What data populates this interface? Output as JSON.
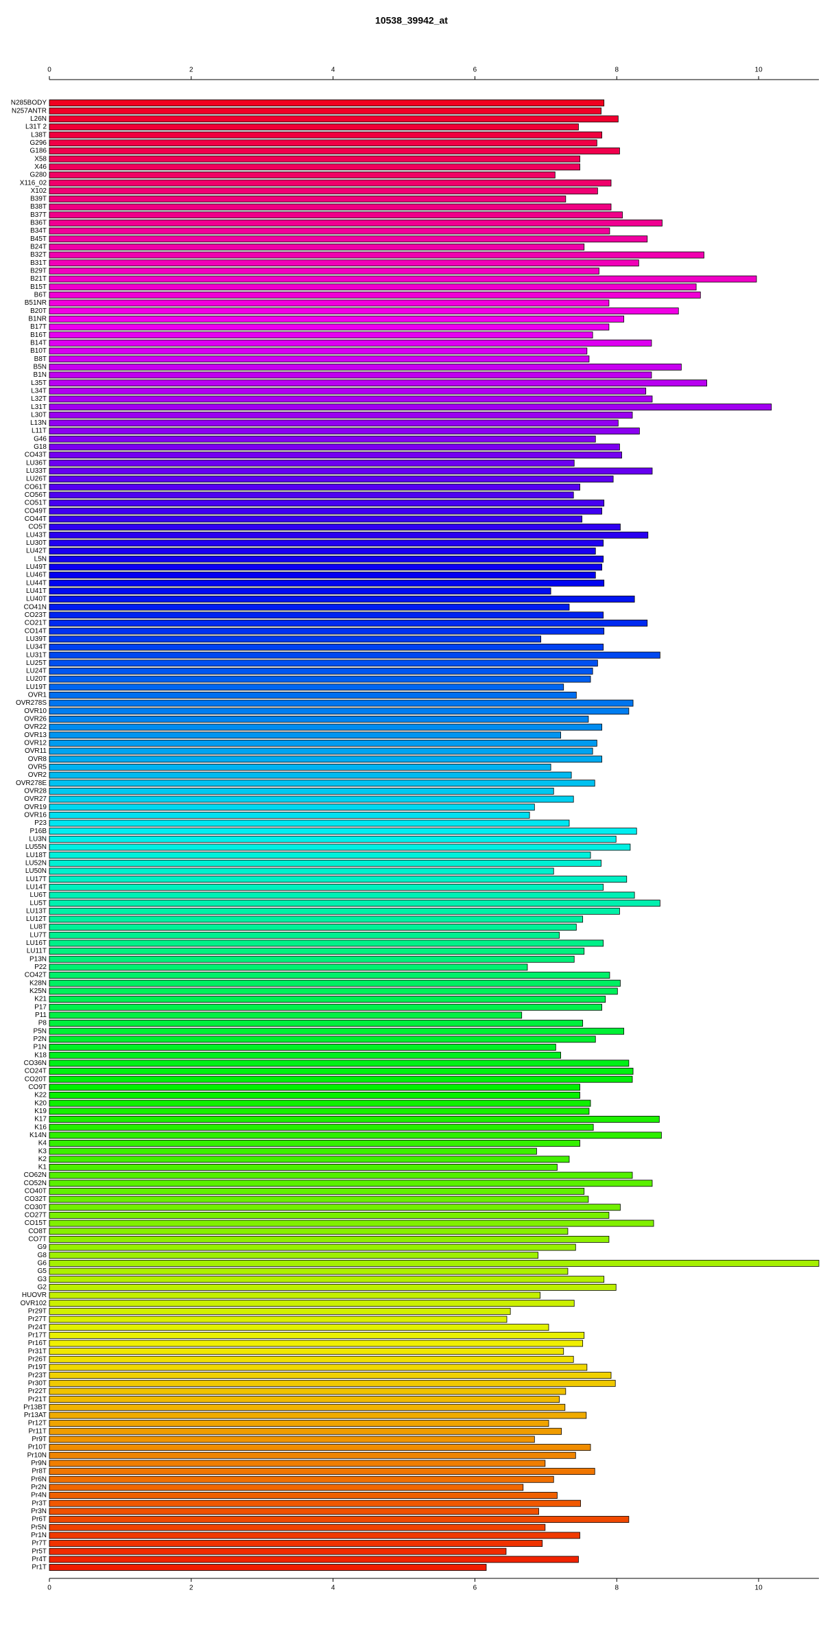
{
  "chart_data": {
    "type": "barh",
    "title": "10538_39942_at",
    "categories": [
      "N285BODY",
      "N257ANTR",
      "L26N",
      "L31T 2",
      "L38T",
      "G296",
      "G186",
      "X58",
      "X46",
      "G280",
      "X116_02",
      "X102",
      "B39T",
      "B38T",
      "B37T",
      "B36T",
      "B34T",
      "B45T",
      "B24T",
      "B32T",
      "B31T",
      "B29T",
      "B21T",
      "B15T",
      "B6T",
      "B51NR",
      "B20T",
      "B1NR",
      "B17T",
      "B16T",
      "B14T",
      "B10T",
      "B8T",
      "B5N",
      "B1N",
      "L35T",
      "L34T",
      "L32T",
      "L31T",
      "L30T",
      "L13N",
      "L11T",
      "G46",
      "G18",
      "CO43T",
      "LU36T",
      "LU33T",
      "LU26T",
      "CO61T",
      "CO56T",
      "CO51T",
      "CO49T",
      "CO44T",
      "CO5T",
      "LU43T",
      "LU30T",
      "LU42T",
      "L5N",
      "LU49T",
      "LU46T",
      "LU44T",
      "LU41T",
      "LU40T",
      "CO41N",
      "CO23T",
      "CO21T",
      "CO14T",
      "LU39T",
      "LU34T",
      "LU31T",
      "LU25T",
      "LU24T",
      "LU20T",
      "LU19T",
      "OVR1",
      "OVR278S",
      "OVR10",
      "OVR26",
      "OVR22",
      "OVR13",
      "OVR12",
      "OVR11",
      "OVR8",
      "OVR5",
      "OVR2",
      "OVR278E",
      "OVR28",
      "OVR27",
      "OVR19",
      "OVR16",
      "P23",
      "P16B",
      "LU3N",
      "LU55N",
      "LU18T",
      "LU52N",
      "LU50N",
      "LU17T",
      "LU14T",
      "LU6T",
      "LU5T",
      "LU13T",
      "LU12T",
      "LU8T",
      "LU7T",
      "LU16T",
      "LU11T",
      "P13N",
      "P22",
      "CO42T",
      "K28N",
      "K25N",
      "K21",
      "P17",
      "P11",
      "P8",
      "P5N",
      "P2N",
      "P1N",
      "K18",
      "CO36N",
      "CO24T",
      "CO20T",
      "CO9T",
      "K22",
      "K20",
      "K19",
      "K17",
      "K16",
      "K14N",
      "K4",
      "K3",
      "K2",
      "K1",
      "CO62N",
      "CO52N",
      "CO40T",
      "CO32T",
      "CO30T",
      "CO27T",
      "CO15T",
      "CO8T",
      "CO7T",
      "G9",
      "G8",
      "G6",
      "G5",
      "G3",
      "G2",
      "HUOVR",
      "OVR102",
      "Pr29T",
      "Pr27T",
      "Pr24T",
      "Pr17T",
      "Pr16T",
      "Pr31T",
      "Pr26T",
      "Pr19T",
      "Pr23T",
      "Pr30T",
      "Pr22T",
      "Pr21T",
      "Pr13BT",
      "Pr13AT",
      "Pr12T",
      "Pr11T",
      "Pr9T",
      "Pr10T",
      "Pr10N",
      "Pr9N",
      "Pr8T",
      "Pr6N",
      "Pr2N",
      "Pr4N",
      "Pr3T",
      "Pr3N",
      "Pr6T",
      "Pr5N",
      "Pr1N",
      "Pr7T",
      "Pr5T",
      "Pr4T",
      "Pr1T"
    ],
    "values": [
      7.82,
      7.78,
      8.02,
      7.46,
      7.79,
      7.72,
      8.04,
      7.48,
      7.48,
      7.13,
      7.92,
      7.73,
      7.28,
      7.92,
      8.08,
      8.64,
      7.9,
      8.43,
      7.54,
      9.23,
      8.31,
      7.75,
      9.97,
      9.12,
      9.18,
      7.89,
      8.87,
      8.1,
      7.89,
      7.66,
      8.49,
      7.58,
      7.61,
      8.91,
      8.49,
      9.27,
      8.41,
      8.5,
      10.18,
      8.22,
      8.02,
      8.32,
      7.7,
      8.04,
      8.07,
      7.4,
      8.5,
      7.95,
      7.48,
      7.39,
      7.82,
      7.79,
      7.51,
      8.05,
      8.44,
      7.81,
      7.7,
      7.81,
      7.79,
      7.7,
      7.82,
      7.07,
      8.25,
      7.33,
      7.81,
      8.43,
      7.82,
      6.93,
      7.81,
      8.61,
      7.73,
      7.66,
      7.63,
      7.25,
      7.43,
      8.23,
      8.17,
      7.6,
      7.79,
      7.21,
      7.72,
      7.66,
      7.79,
      7.07,
      7.36,
      7.69,
      7.11,
      7.39,
      6.84,
      6.77,
      7.33,
      8.28,
      7.99,
      8.19,
      7.63,
      7.78,
      7.11,
      8.14,
      7.81,
      8.25,
      8.61,
      8.04,
      7.52,
      7.43,
      7.19,
      7.81,
      7.54,
      7.4,
      6.74,
      7.9,
      8.05,
      8.01,
      7.84,
      7.79,
      6.66,
      7.52,
      8.1,
      7.7,
      7.14,
      7.21,
      8.17,
      8.23,
      8.22,
      7.48,
      7.48,
      7.63,
      7.61,
      8.6,
      7.67,
      8.63,
      7.48,
      6.87,
      7.33,
      7.16,
      8.22,
      8.5,
      7.54,
      7.6,
      8.05,
      7.89,
      8.52,
      7.31,
      7.89,
      7.42,
      6.89,
      10.85,
      7.31,
      7.82,
      7.99,
      6.92,
      7.4,
      6.5,
      6.45,
      7.04,
      7.54,
      7.52,
      7.25,
      7.39,
      7.58,
      7.92,
      7.98,
      7.28,
      7.19,
      7.27,
      7.57,
      7.04,
      7.22,
      6.84,
      7.63,
      7.42,
      6.99,
      7.69,
      7.11,
      6.68,
      7.16,
      7.49,
      6.9,
      8.17,
      6.99,
      7.48,
      6.95,
      6.44,
      7.46,
      6.16
    ],
    "palette": "rainbow",
    "xlim": [
      0,
      10.85
    ],
    "xticks": [
      0,
      2,
      4,
      6,
      8,
      10
    ]
  }
}
